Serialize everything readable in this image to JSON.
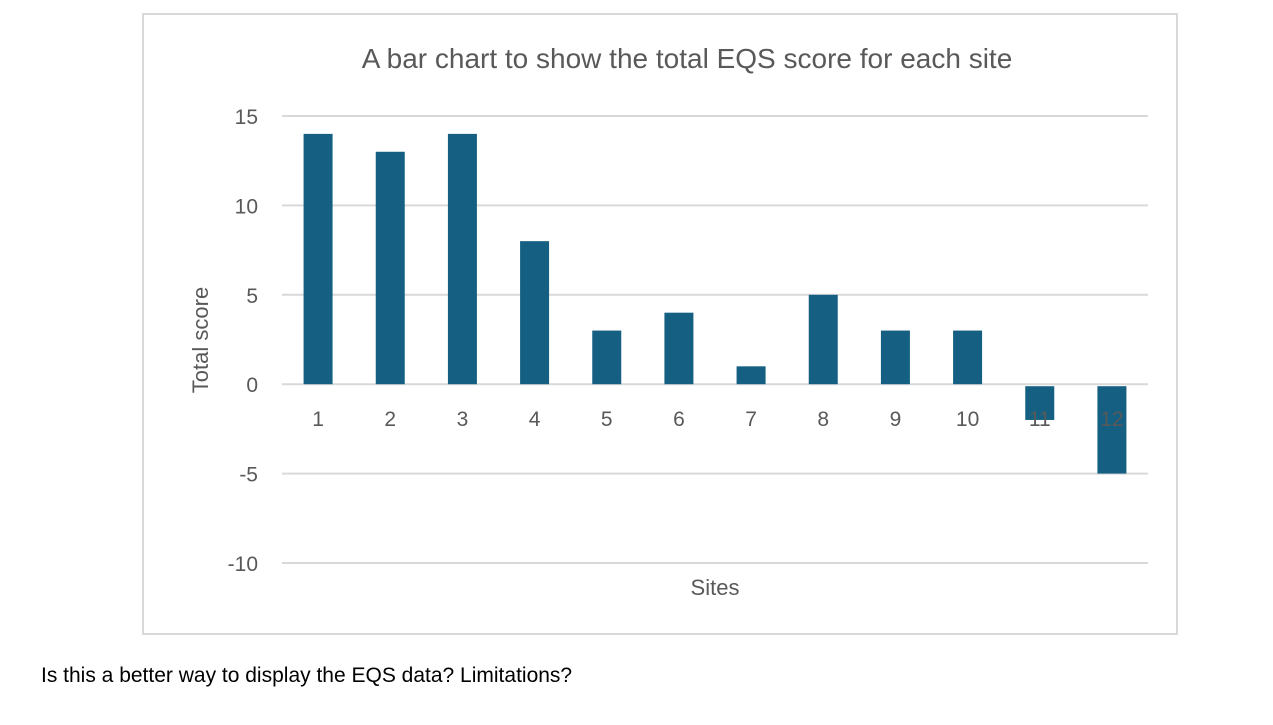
{
  "caption": "Is this a better way to display the EQS data? Limitations?",
  "chart_data": {
    "type": "bar",
    "title": "A bar chart to show the total EQS score for each site",
    "xlabel": "Sites",
    "ylabel": "Total score",
    "categories": [
      "1",
      "2",
      "3",
      "4",
      "5",
      "6",
      "7",
      "8",
      "9",
      "10",
      "11",
      "12"
    ],
    "values": [
      14,
      13,
      14,
      8,
      3,
      4,
      1,
      5,
      3,
      3,
      -2,
      -5
    ],
    "ylim": [
      -10,
      15
    ],
    "yticks": [
      15,
      10,
      5,
      0,
      -5,
      -10
    ],
    "grid": true,
    "legend": "none",
    "bar_color": "#156082"
  }
}
